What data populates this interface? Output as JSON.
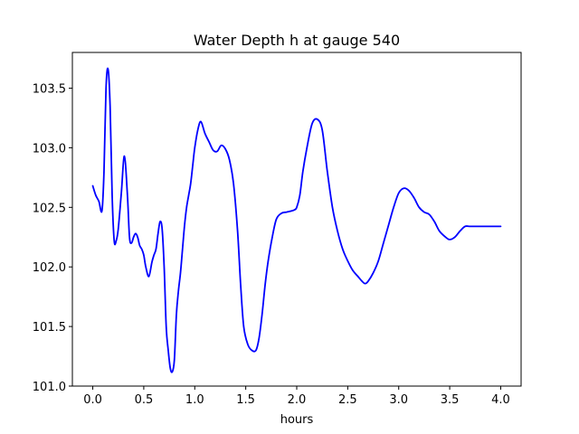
{
  "chart_data": {
    "type": "line",
    "title": "Water Depth h at gauge 540",
    "xlabel": "hours",
    "ylabel": "",
    "xlim": [
      -0.2,
      4.2
    ],
    "ylim": [
      101.0,
      103.8
    ],
    "xticks": [
      0.0,
      0.5,
      1.0,
      1.5,
      2.0,
      2.5,
      3.0,
      3.5,
      4.0
    ],
    "xtick_labels": [
      "0.0",
      "0.5",
      "1.0",
      "1.5",
      "2.0",
      "2.5",
      "3.0",
      "3.5",
      "4.0"
    ],
    "yticks": [
      101.0,
      101.5,
      102.0,
      102.5,
      103.0,
      103.5
    ],
    "ytick_labels": [
      "101.0",
      "101.5",
      "102.0",
      "102.5",
      "103.0",
      "103.5"
    ],
    "grid": false,
    "series": [
      {
        "name": "",
        "color": "#0000ff",
        "x": [
          0.0,
          0.03,
          0.06,
          0.09,
          0.11,
          0.13,
          0.15,
          0.17,
          0.19,
          0.21,
          0.23,
          0.25,
          0.28,
          0.31,
          0.34,
          0.36,
          0.38,
          0.4,
          0.42,
          0.44,
          0.46,
          0.48,
          0.5,
          0.52,
          0.55,
          0.58,
          0.6,
          0.62,
          0.64,
          0.66,
          0.68,
          0.7,
          0.72,
          0.74,
          0.76,
          0.78,
          0.8,
          0.82,
          0.84,
          0.86,
          0.88,
          0.9,
          0.92,
          0.94,
          0.96,
          0.98,
          1.0,
          1.03,
          1.06,
          1.1,
          1.14,
          1.18,
          1.22,
          1.26,
          1.3,
          1.34,
          1.38,
          1.42,
          1.45,
          1.48,
          1.52,
          1.56,
          1.6,
          1.63,
          1.66,
          1.69,
          1.72,
          1.76,
          1.8,
          1.85,
          1.9,
          1.95,
          1.98,
          2.0,
          2.03,
          2.06,
          2.1,
          2.15,
          2.2,
          2.25,
          2.3,
          2.35,
          2.4,
          2.45,
          2.5,
          2.55,
          2.6,
          2.64,
          2.67,
          2.7,
          2.75,
          2.8,
          2.85,
          2.9,
          2.95,
          3.0,
          3.05,
          3.1,
          3.15,
          3.2,
          3.25,
          3.3,
          3.35,
          3.4,
          3.46,
          3.5,
          3.55,
          3.6,
          3.65,
          3.7,
          3.75,
          3.8,
          3.85,
          3.9,
          3.95,
          4.0
        ],
        "y": [
          102.68,
          102.6,
          102.55,
          102.47,
          102.8,
          103.5,
          103.66,
          103.35,
          102.6,
          102.22,
          102.22,
          102.32,
          102.62,
          102.93,
          102.6,
          102.25,
          102.2,
          102.25,
          102.28,
          102.25,
          102.18,
          102.15,
          102.1,
          102.0,
          101.92,
          102.04,
          102.1,
          102.15,
          102.28,
          102.38,
          102.32,
          102.0,
          101.5,
          101.3,
          101.15,
          101.12,
          101.22,
          101.6,
          101.8,
          101.95,
          102.15,
          102.35,
          102.5,
          102.6,
          102.7,
          102.85,
          103.0,
          103.15,
          103.22,
          103.12,
          103.05,
          102.98,
          102.97,
          103.02,
          102.99,
          102.9,
          102.7,
          102.3,
          101.85,
          101.5,
          101.35,
          101.3,
          101.3,
          101.4,
          101.6,
          101.85,
          102.05,
          102.25,
          102.4,
          102.45,
          102.46,
          102.47,
          102.48,
          102.5,
          102.6,
          102.8,
          103.0,
          103.2,
          103.24,
          103.15,
          102.8,
          102.5,
          102.3,
          102.15,
          102.05,
          101.97,
          101.92,
          101.88,
          101.86,
          101.88,
          101.95,
          102.05,
          102.2,
          102.35,
          102.5,
          102.62,
          102.66,
          102.64,
          102.58,
          102.5,
          102.46,
          102.44,
          102.38,
          102.3,
          102.25,
          102.23,
          102.25,
          102.3,
          102.34,
          102.34,
          102.34,
          102.34,
          102.34,
          102.34,
          102.34,
          102.34
        ]
      }
    ]
  }
}
